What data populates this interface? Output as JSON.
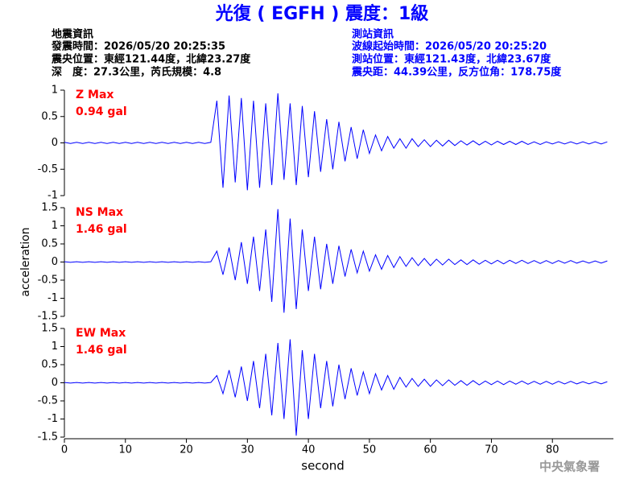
{
  "header": {
    "title": "光復 ( EGFH ) 震度：1級",
    "left_info": [
      "地震資訊",
      "發震時間：2026/05/20 20:25:35",
      "震央位置：東經121.44度，北緯23.27度",
      "深　度：27.3公里，芮氏規模：4.8"
    ],
    "right_info": [
      "測站資訊",
      "波線起始時間：2026/05/20 20:25:20",
      "測站位置：東經121.43度，北緯23.67度",
      "震央距：44.39公里，反方位角：178.75度"
    ]
  },
  "chart_data": [
    {
      "type": "line",
      "annotations": [
        "Z Max",
        "0.94 gal"
      ],
      "color": "#0000ff",
      "xlim": [
        0,
        90
      ],
      "ylim": [
        -1,
        1
      ],
      "yticks": [
        -1,
        -0.5,
        0,
        0.5,
        1
      ],
      "x": [
        0,
        1,
        2,
        3,
        4,
        5,
        6,
        7,
        8,
        9,
        10,
        11,
        12,
        13,
        14,
        15,
        16,
        17,
        18,
        19,
        20,
        21,
        22,
        23,
        24,
        25,
        26,
        27,
        28,
        29,
        30,
        31,
        32,
        33,
        34,
        35,
        36,
        37,
        38,
        39,
        40,
        41,
        42,
        43,
        44,
        45,
        46,
        47,
        48,
        49,
        50,
        51,
        52,
        53,
        54,
        55,
        56,
        57,
        58,
        59,
        60,
        61,
        62,
        63,
        64,
        65,
        66,
        67,
        68,
        69,
        70,
        71,
        72,
        73,
        74,
        75,
        76,
        77,
        78,
        79,
        80,
        81,
        82,
        83,
        84,
        85,
        86,
        87,
        88,
        89
      ],
      "values": [
        0.01,
        -0.01,
        0.01,
        -0.01,
        0.01,
        -0.01,
        0.01,
        -0.01,
        0.01,
        -0.01,
        0.01,
        -0.01,
        0.01,
        -0.01,
        0.01,
        -0.01,
        0.01,
        -0.01,
        0.01,
        -0.01,
        0.01,
        -0.01,
        0.01,
        -0.01,
        0.01,
        0.8,
        -0.85,
        0.9,
        -0.75,
        0.85,
        -0.9,
        0.8,
        -0.85,
        0.75,
        -0.8,
        0.94,
        -0.7,
        0.75,
        -0.8,
        0.7,
        -0.65,
        0.6,
        -0.55,
        0.45,
        -0.5,
        0.4,
        -0.35,
        0.3,
        -0.3,
        0.25,
        -0.2,
        0.15,
        -0.15,
        0.12,
        -0.1,
        0.08,
        -0.1,
        0.08,
        -0.07,
        0.06,
        -0.07,
        0.05,
        -0.06,
        0.05,
        -0.05,
        0.04,
        -0.04,
        0.04,
        -0.04,
        0.03,
        -0.04,
        0.03,
        -0.03,
        0.03,
        -0.03,
        0.03,
        -0.03,
        0.02,
        -0.03,
        0.02,
        -0.02,
        0.02,
        -0.02,
        0.02,
        -0.02,
        0.02,
        -0.02,
        0.02,
        -0.02,
        0.02
      ]
    },
    {
      "type": "line",
      "annotations": [
        "NS Max",
        "1.46 gal"
      ],
      "ylabel": "acceleration",
      "color": "#0000ff",
      "xlim": [
        0,
        90
      ],
      "ylim": [
        -1.5,
        1.5
      ],
      "yticks": [
        -1.5,
        -1,
        -0.5,
        0,
        0.5,
        1,
        1.5
      ],
      "x": [
        0,
        1,
        2,
        3,
        4,
        5,
        6,
        7,
        8,
        9,
        10,
        11,
        12,
        13,
        14,
        15,
        16,
        17,
        18,
        19,
        20,
        21,
        22,
        23,
        24,
        25,
        26,
        27,
        28,
        29,
        30,
        31,
        32,
        33,
        34,
        35,
        36,
        37,
        38,
        39,
        40,
        41,
        42,
        43,
        44,
        45,
        46,
        47,
        48,
        49,
        50,
        51,
        52,
        53,
        54,
        55,
        56,
        57,
        58,
        59,
        60,
        61,
        62,
        63,
        64,
        65,
        66,
        67,
        68,
        69,
        70,
        71,
        72,
        73,
        74,
        75,
        76,
        77,
        78,
        79,
        80,
        81,
        82,
        83,
        84,
        85,
        86,
        87,
        88,
        89
      ],
      "values": [
        0.01,
        -0.01,
        0.01,
        -0.01,
        0.01,
        -0.01,
        0.01,
        -0.01,
        0.01,
        -0.01,
        0.01,
        -0.01,
        0.01,
        -0.01,
        0.01,
        -0.01,
        0.01,
        -0.01,
        0.01,
        -0.01,
        0.01,
        -0.01,
        0.01,
        -0.01,
        0.01,
        0.3,
        -0.35,
        0.4,
        -0.5,
        0.55,
        -0.6,
        0.7,
        -0.8,
        0.9,
        -1.1,
        1.46,
        -1.4,
        1.2,
        -1.3,
        0.9,
        -0.8,
        0.7,
        -0.75,
        0.5,
        -0.6,
        0.45,
        -0.4,
        0.35,
        -0.3,
        0.3,
        -0.25,
        0.2,
        -0.2,
        0.18,
        -0.15,
        0.15,
        -0.12,
        0.12,
        -0.1,
        0.1,
        -0.1,
        0.08,
        -0.08,
        0.08,
        -0.07,
        0.06,
        -0.07,
        0.06,
        -0.06,
        0.05,
        -0.05,
        0.05,
        -0.05,
        0.05,
        -0.04,
        0.05,
        -0.04,
        0.04,
        -0.04,
        0.04,
        -0.04,
        0.04,
        -0.03,
        0.04,
        -0.03,
        0.03,
        -0.03,
        0.03,
        -0.03,
        0.03
      ]
    },
    {
      "type": "line",
      "annotations": [
        "EW Max",
        "1.46 gal"
      ],
      "xlabel": "second",
      "color": "#0000ff",
      "xlim": [
        0,
        90
      ],
      "ylim": [
        -1.5,
        1.5
      ],
      "yticks": [
        -1.5,
        -1,
        -0.5,
        0,
        0.5,
        1,
        1.5
      ],
      "xticks": [
        0,
        10,
        20,
        30,
        40,
        50,
        60,
        70,
        80
      ],
      "x": [
        0,
        1,
        2,
        3,
        4,
        5,
        6,
        7,
        8,
        9,
        10,
        11,
        12,
        13,
        14,
        15,
        16,
        17,
        18,
        19,
        20,
        21,
        22,
        23,
        24,
        25,
        26,
        27,
        28,
        29,
        30,
        31,
        32,
        33,
        34,
        35,
        36,
        37,
        38,
        39,
        40,
        41,
        42,
        43,
        44,
        45,
        46,
        47,
        48,
        49,
        50,
        51,
        52,
        53,
        54,
        55,
        56,
        57,
        58,
        59,
        60,
        61,
        62,
        63,
        64,
        65,
        66,
        67,
        68,
        69,
        70,
        71,
        72,
        73,
        74,
        75,
        76,
        77,
        78,
        79,
        80,
        81,
        82,
        83,
        84,
        85,
        86,
        87,
        88,
        89
      ],
      "values": [
        0.01,
        -0.01,
        0.01,
        -0.01,
        0.01,
        -0.01,
        0.01,
        -0.01,
        0.01,
        -0.01,
        0.01,
        -0.01,
        0.01,
        -0.01,
        0.01,
        -0.01,
        0.01,
        -0.01,
        0.01,
        -0.01,
        0.01,
        -0.01,
        0.01,
        -0.01,
        0.01,
        0.2,
        -0.3,
        0.35,
        -0.4,
        0.45,
        -0.5,
        0.6,
        -0.7,
        0.8,
        -0.9,
        1.1,
        -1.0,
        1.2,
        -1.46,
        0.9,
        -1.0,
        0.8,
        -0.7,
        0.6,
        -0.65,
        0.5,
        -0.45,
        0.4,
        -0.35,
        0.3,
        -0.3,
        0.25,
        -0.2,
        0.2,
        -0.18,
        0.15,
        -0.12,
        0.12,
        -0.1,
        0.1,
        -0.1,
        0.08,
        -0.08,
        0.08,
        -0.07,
        0.06,
        -0.07,
        0.06,
        -0.06,
        0.05,
        -0.05,
        0.05,
        -0.05,
        0.05,
        -0.04,
        0.05,
        -0.04,
        0.04,
        -0.04,
        0.04,
        -0.04,
        0.04,
        -0.03,
        0.04,
        -0.03,
        0.03,
        -0.03,
        0.03,
        -0.03,
        0.03
      ]
    }
  ],
  "footer": "中央氣象署"
}
